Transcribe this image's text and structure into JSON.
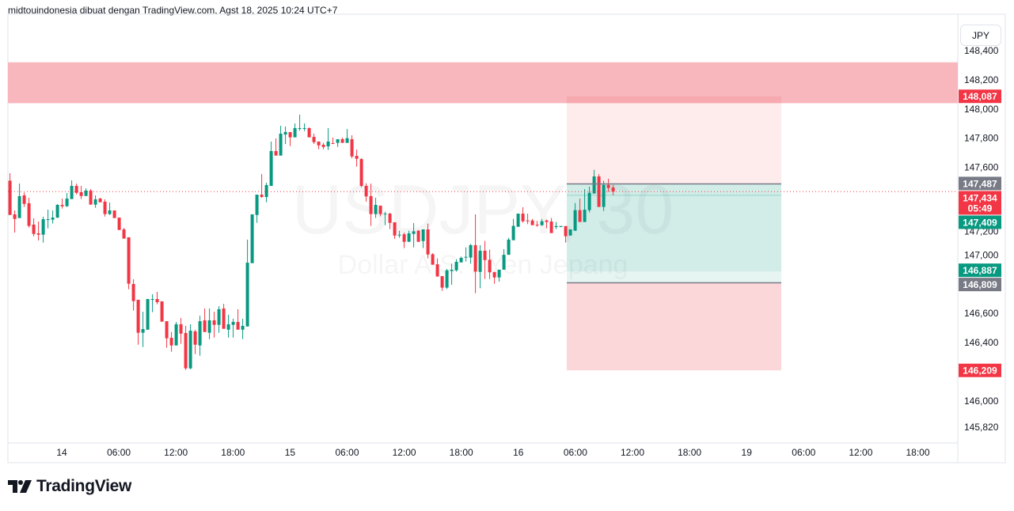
{
  "header": {
    "attribution": "midtouindonesia dibuat dengan TradingView.com, Agst 18, 2025 10:24 UTC+7"
  },
  "currency_button": "JPY",
  "brand": {
    "name": "TradingView"
  },
  "colors": {
    "up": "#089981",
    "down": "#f23645",
    "neutral_label": "#787b86",
    "zone": "#f8b6bd"
  },
  "chart_data": {
    "type": "candlestick",
    "symbol_watermark": "USDJPY, 30",
    "description_watermark": "Dollar A.S. / Yen Jepang",
    "timeframe": "30",
    "y_axis": {
      "unit": "JPY",
      "range": [
        145.82,
        148.4
      ],
      "tick_labels": [
        {
          "value": 148.4,
          "label": "148,400"
        },
        {
          "value": 148.2,
          "label": "148,200"
        },
        {
          "value": 148.0,
          "label": "148,000"
        },
        {
          "value": 147.8,
          "label": "147,800"
        },
        {
          "value": 147.6,
          "label": "147,600"
        },
        {
          "value": 147.2,
          "label": "147,200"
        },
        {
          "value": 147.0,
          "label": "147,000"
        },
        {
          "value": 146.6,
          "label": "146,600"
        },
        {
          "value": 146.4,
          "label": "146,400"
        },
        {
          "value": 146.0,
          "label": "146,000"
        },
        {
          "value": 145.82,
          "label": "145,820"
        }
      ]
    },
    "x_axis": {
      "tick_labels": [
        "14",
        "06:00",
        "12:00",
        "18:00",
        "15",
        "06:00",
        "12:00",
        "18:00",
        "16",
        "06:00",
        "12:00",
        "18:00",
        "19",
        "06:00",
        "12:00",
        "18:00"
      ]
    },
    "grid": false,
    "ohlc": [
      [
        147.509,
        147.56,
        147.274,
        147.274
      ],
      [
        147.278,
        147.305,
        147.153,
        147.247
      ],
      [
        147.253,
        147.489,
        147.253,
        147.403
      ],
      [
        147.408,
        147.428,
        147.329,
        147.35
      ],
      [
        147.354,
        147.392,
        147.188,
        147.199
      ],
      [
        147.208,
        147.251,
        147.128,
        147.144
      ],
      [
        147.148,
        147.229,
        147.099,
        147.139
      ],
      [
        147.139,
        147.262,
        147.085,
        147.245
      ],
      [
        147.242,
        147.31,
        147.182,
        147.245
      ],
      [
        147.242,
        147.305,
        147.215,
        147.256
      ],
      [
        147.256,
        147.348,
        147.253,
        147.343
      ],
      [
        147.343,
        147.386,
        147.318,
        147.334
      ],
      [
        147.334,
        147.424,
        147.329,
        147.386
      ],
      [
        147.383,
        147.511,
        147.383,
        147.473
      ],
      [
        147.473,
        147.489,
        147.415,
        147.426
      ],
      [
        147.43,
        147.473,
        147.383,
        147.404
      ],
      [
        147.404,
        147.457,
        147.404,
        147.441
      ],
      [
        147.441,
        147.451,
        147.345,
        147.345
      ],
      [
        147.345,
        147.408,
        147.323,
        147.381
      ],
      [
        147.386,
        147.392,
        147.361,
        147.361
      ],
      [
        147.365,
        147.381,
        147.263,
        147.28
      ],
      [
        147.28,
        147.359,
        147.274,
        147.305
      ],
      [
        147.305,
        147.305,
        147.253,
        147.253
      ],
      [
        147.256,
        147.256,
        147.171,
        147.171
      ],
      [
        147.175,
        147.186,
        147.112,
        147.112
      ],
      [
        147.121,
        147.121,
        146.765,
        146.803
      ],
      [
        146.801,
        146.833,
        146.619,
        146.684
      ],
      [
        146.693,
        146.693,
        146.385,
        146.467
      ],
      [
        146.467,
        146.611,
        146.369,
        146.492
      ],
      [
        146.488,
        146.698,
        146.488,
        146.698
      ],
      [
        146.694,
        146.731,
        146.608,
        146.698
      ],
      [
        146.698,
        146.747,
        146.662,
        146.676
      ],
      [
        146.682,
        146.682,
        146.543,
        146.543
      ],
      [
        146.546,
        146.546,
        146.364,
        146.429
      ],
      [
        146.432,
        146.472,
        146.337,
        146.38
      ],
      [
        146.38,
        146.541,
        146.38,
        146.525
      ],
      [
        146.525,
        146.568,
        146.391,
        146.461
      ],
      [
        146.465,
        146.514,
        146.212,
        146.223
      ],
      [
        146.223,
        146.525,
        146.217,
        146.481
      ],
      [
        146.476,
        146.488,
        146.32,
        146.385
      ],
      [
        146.38,
        146.584,
        146.31,
        146.546
      ],
      [
        146.552,
        146.633,
        146.472,
        146.472
      ],
      [
        146.467,
        146.633,
        146.423,
        146.552
      ],
      [
        146.552,
        146.611,
        146.434,
        146.521
      ],
      [
        146.521,
        146.649,
        146.467,
        146.628
      ],
      [
        146.633,
        146.665,
        146.494,
        146.494
      ],
      [
        146.488,
        146.59,
        146.434,
        146.525
      ],
      [
        146.521,
        146.563,
        146.434,
        146.541
      ],
      [
        146.541,
        146.628,
        146.488,
        146.488
      ],
      [
        146.488,
        146.563,
        146.423,
        146.514
      ],
      [
        146.51,
        147.105,
        146.51,
        146.947
      ],
      [
        146.944,
        147.278,
        146.944,
        147.278
      ],
      [
        147.274,
        147.413,
        147.22,
        147.413
      ],
      [
        147.413,
        147.554,
        147.392,
        147.397
      ],
      [
        147.397,
        147.495,
        147.361,
        147.479
      ],
      [
        147.473,
        147.777,
        147.473,
        147.712
      ],
      [
        147.712,
        147.798,
        147.681,
        147.681
      ],
      [
        147.681,
        147.885,
        147.681,
        147.831
      ],
      [
        147.825,
        147.88,
        147.76,
        147.842
      ],
      [
        147.842,
        147.842,
        147.746,
        147.806
      ],
      [
        147.806,
        147.901,
        147.806,
        147.869
      ],
      [
        147.865,
        147.961,
        147.852,
        147.869
      ],
      [
        147.865,
        147.901,
        147.849,
        147.869
      ],
      [
        147.869,
        147.874,
        147.806,
        147.806
      ],
      [
        147.809,
        147.831,
        147.76,
        147.773
      ],
      [
        147.777,
        147.777,
        147.724,
        147.751
      ],
      [
        147.755,
        147.768,
        147.724,
        147.74
      ],
      [
        147.744,
        147.869,
        147.719,
        147.777
      ],
      [
        147.766,
        147.804,
        147.762,
        147.762
      ],
      [
        147.768,
        147.793,
        147.74,
        147.793
      ],
      [
        147.793,
        147.804,
        147.768,
        147.768
      ],
      [
        147.768,
        147.863,
        147.768,
        147.8
      ],
      [
        147.793,
        147.82,
        147.663,
        147.675
      ],
      [
        147.679,
        147.722,
        147.605,
        147.659
      ],
      [
        147.657,
        147.663,
        147.464,
        147.473
      ],
      [
        147.473,
        147.491,
        147.365,
        147.401
      ],
      [
        147.403,
        147.489,
        147.199,
        147.28
      ],
      [
        147.28,
        147.392,
        147.253,
        147.343
      ],
      [
        147.338,
        147.338,
        147.265,
        147.28
      ],
      [
        147.28,
        147.296,
        147.204,
        147.283
      ],
      [
        147.283,
        147.289,
        147.177,
        147.22
      ],
      [
        147.224,
        147.224,
        147.11,
        147.133
      ],
      [
        147.133,
        147.166,
        147.117,
        147.139
      ],
      [
        147.142,
        147.153,
        147.047,
        147.09
      ],
      [
        147.09,
        147.166,
        147.09,
        147.148
      ],
      [
        147.144,
        147.218,
        147.052,
        147.162
      ],
      [
        147.166,
        147.171,
        147.09,
        147.09
      ],
      [
        147.095,
        147.175,
        147.047,
        147.175
      ],
      [
        147.175,
        147.215,
        146.976,
        147.003
      ],
      [
        147.005,
        147.012,
        146.933,
        146.933
      ],
      [
        146.936,
        146.976,
        146.852,
        146.852
      ],
      [
        146.855,
        146.855,
        146.754,
        146.776
      ],
      [
        146.776,
        146.904,
        146.767,
        146.895
      ],
      [
        146.89,
        146.94,
        146.796,
        146.899
      ],
      [
        146.895,
        146.971,
        146.886,
        146.953
      ],
      [
        146.949,
        146.989,
        146.949,
        146.98
      ],
      [
        146.983,
        147.052,
        146.955,
        146.987
      ],
      [
        146.982,
        147.076,
        146.94,
        147.067
      ],
      [
        147.067,
        147.278,
        146.738,
        146.886
      ],
      [
        146.884,
        147.067,
        146.772,
        147.029
      ],
      [
        147.029,
        147.096,
        146.835,
        146.965
      ],
      [
        146.967,
        147.036,
        146.835,
        146.881
      ],
      [
        146.882,
        146.886,
        146.803,
        146.846
      ],
      [
        146.846,
        146.899,
        146.817,
        146.899
      ],
      [
        146.899,
        147.04,
        146.899,
        147.001
      ],
      [
        147.001,
        147.117,
        147.001,
        147.105
      ],
      [
        147.101,
        147.247,
        147.101,
        147.199
      ],
      [
        147.193,
        147.283,
        147.193,
        147.283
      ],
      [
        147.283,
        147.327,
        147.22,
        147.231
      ],
      [
        147.236,
        147.283,
        147.211,
        147.233
      ],
      [
        147.236,
        147.247,
        147.204,
        147.204
      ],
      [
        147.207,
        147.233,
        147.193,
        147.204
      ],
      [
        147.204,
        147.247,
        147.199,
        147.231
      ],
      [
        147.236,
        147.242,
        147.182,
        147.226
      ],
      [
        147.229,
        147.253,
        147.15,
        147.15
      ],
      [
        147.191,
        147.226,
        147.177,
        147.198
      ],
      [
        147.191,
        147.198,
        147.191,
        147.198
      ],
      [
        147.198,
        147.198,
        147.085,
        147.128
      ],
      [
        147.133,
        147.175,
        147.133,
        147.175
      ],
      [
        147.166,
        147.356,
        147.166,
        147.307
      ],
      [
        147.307,
        147.386,
        147.226,
        147.226
      ],
      [
        147.226,
        147.451,
        147.226,
        147.31
      ],
      [
        147.307,
        147.468,
        147.291,
        147.426
      ],
      [
        147.421,
        147.583,
        147.421,
        147.538
      ],
      [
        147.538,
        147.554,
        147.329,
        147.329
      ],
      [
        147.329,
        147.508,
        147.301,
        147.48
      ],
      [
        147.48,
        147.522,
        147.432,
        147.459
      ],
      [
        147.462,
        147.48,
        147.41,
        147.434
      ]
    ],
    "current_price": {
      "value": 147.434,
      "label": "147,434",
      "countdown": "05:49"
    },
    "resistance_zone": {
      "top": 148.32,
      "bottom": 148.04
    },
    "position_tool": {
      "entry": {
        "value": 147.487,
        "label": "147,487"
      },
      "stop_upper": {
        "value": 148.087,
        "label": "148,087"
      },
      "level_a": {
        "value": 147.409,
        "label": "147,409"
      },
      "target": {
        "value": 146.887,
        "label": "146,887"
      },
      "entry_2": {
        "value": 146.809,
        "label": "146,809"
      },
      "stop_lower": {
        "value": 146.209,
        "label": "146,209"
      }
    }
  }
}
